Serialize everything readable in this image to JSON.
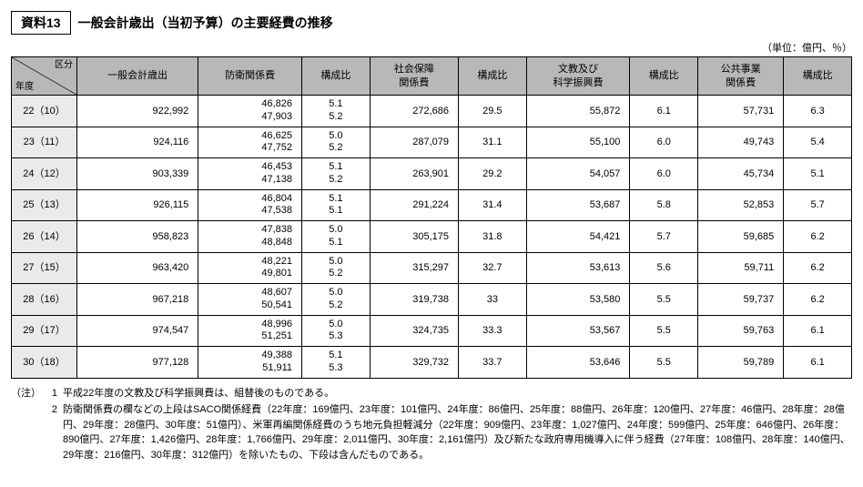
{
  "title_box": "資料13",
  "title_text": "一般会計歳出（当初予算）の主要経費の推移",
  "unit": "（単位：億円、％）",
  "corner": {
    "top": "区分",
    "bottom": "年度"
  },
  "headers": [
    "一般会計歳出",
    "防衛関係費",
    "構成比",
    "社会保障\n関係費",
    "構成比",
    "文教及び\n科学振興費",
    "構成比",
    "公共事業\n関係費",
    "構成比"
  ],
  "rows": [
    {
      "year": "22（10）",
      "c0": "922,992",
      "c1a": "46,826",
      "c1b": "47,903",
      "c2a": "5.1",
      "c2b": "5.2",
      "c3": "272,686",
      "c4": "29.5",
      "c5": "55,872",
      "c6": "6.1",
      "c7": "57,731",
      "c8": "6.3"
    },
    {
      "year": "23（11）",
      "c0": "924,116",
      "c1a": "46,625",
      "c1b": "47,752",
      "c2a": "5.0",
      "c2b": "5.2",
      "c3": "287,079",
      "c4": "31.1",
      "c5": "55,100",
      "c6": "6.0",
      "c7": "49,743",
      "c8": "5.4"
    },
    {
      "year": "24（12）",
      "c0": "903,339",
      "c1a": "46,453",
      "c1b": "47,138",
      "c2a": "5.1",
      "c2b": "5.2",
      "c3": "263,901",
      "c4": "29.2",
      "c5": "54,057",
      "c6": "6.0",
      "c7": "45,734",
      "c8": "5.1"
    },
    {
      "year": "25（13）",
      "c0": "926,115",
      "c1a": "46,804",
      "c1b": "47,538",
      "c2a": "5.1",
      "c2b": "5.1",
      "c3": "291,224",
      "c4": "31.4",
      "c5": "53,687",
      "c6": "5.8",
      "c7": "52,853",
      "c8": "5.7"
    },
    {
      "year": "26（14）",
      "c0": "958,823",
      "c1a": "47,838",
      "c1b": "48,848",
      "c2a": "5.0",
      "c2b": "5.1",
      "c3": "305,175",
      "c4": "31.8",
      "c5": "54,421",
      "c6": "5.7",
      "c7": "59,685",
      "c8": "6.2"
    },
    {
      "year": "27（15）",
      "c0": "963,420",
      "c1a": "48,221",
      "c1b": "49,801",
      "c2a": "5.0",
      "c2b": "5.2",
      "c3": "315,297",
      "c4": "32.7",
      "c5": "53,613",
      "c6": "5.6",
      "c7": "59,711",
      "c8": "6.2"
    },
    {
      "year": "28（16）",
      "c0": "967,218",
      "c1a": "48,607",
      "c1b": "50,541",
      "c2a": "5.0",
      "c2b": "5.2",
      "c3": "319,738",
      "c4": "33",
      "c5": "53,580",
      "c6": "5.5",
      "c7": "59,737",
      "c8": "6.2"
    },
    {
      "year": "29（17）",
      "c0": "974,547",
      "c1a": "48,996",
      "c1b": "51,251",
      "c2a": "5.0",
      "c2b": "5.3",
      "c3": "324,735",
      "c4": "33.3",
      "c5": "53,567",
      "c6": "5.5",
      "c7": "59,763",
      "c8": "6.1"
    },
    {
      "year": "30（18）",
      "c0": "977,128",
      "c1a": "49,388",
      "c1b": "51,911",
      "c2a": "5.1",
      "c2b": "5.3",
      "c3": "329,732",
      "c4": "33.7",
      "c5": "53,646",
      "c6": "5.5",
      "c7": "59,789",
      "c8": "6.1"
    }
  ],
  "notes_label": "（注）",
  "notes": [
    {
      "n": "1",
      "t": "平成22年度の文教及び科学振興費は、組替後のものである。"
    },
    {
      "n": "2",
      "t": "防衛関係費の欄などの上段はSACO関係経費（22年度：169億円、23年度：101億円、24年度：86億円、25年度：88億円、26年度：120億円、27年度：46億円、28年度：28億円、29年度：28億円、30年度：51億円）、米軍再編関係経費のうち地元負担軽減分（22年度：909億円、23年度：1,027億円、24年度：599億円、25年度：646億円、26年度：890億円、27年度：1,426億円、28年度：1,766億円、29年度：2,011億円、30年度：2,161億円）及び新たな政府専用機導入に伴う経費（27年度：108億円、28年度：140億円、29年度：216億円、30年度：312億円）を除いたもの、下段は含んだものである。"
    }
  ]
}
